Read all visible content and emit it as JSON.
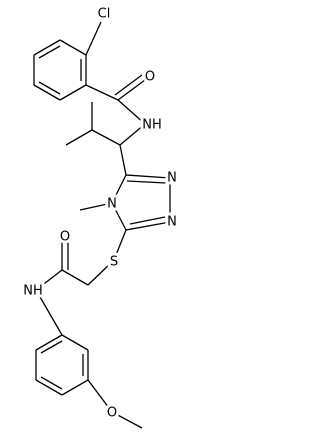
{
  "labels": [
    "Cl",
    "O",
    "NH",
    "N",
    "N",
    "N",
    "S",
    "O",
    "NH",
    "O"
  ]
}
